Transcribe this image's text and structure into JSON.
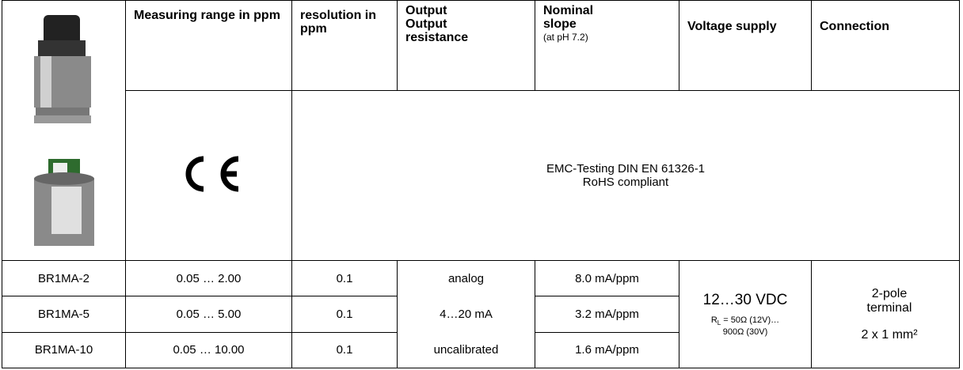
{
  "header": {
    "measuring_range": "Measuring range in ppm",
    "resolution": "resolution in ppm",
    "output": [
      "Output",
      "Output",
      "resistance"
    ],
    "slope": "Nominal slope",
    "slope_note": "(at pH 7.2)",
    "voltage": "Voltage supply",
    "connection": "Connection"
  },
  "certification": [
    "EMC-Testing DIN EN 61326-1",
    "RoHS compliant"
  ],
  "rows": [
    [
      "BR1MA-2",
      "0.05 … 2.00",
      "0.1",
      "8.0 mA/ppm"
    ],
    [
      "BR1MA-5",
      "0.05 … 5.00",
      "0.1",
      "3.2 mA/ppm"
    ],
    [
      "BR1MA-10",
      "0.05 … 10.00",
      "0.1",
      "1.6 mA/ppm"
    ]
  ],
  "output": [
    "analog",
    "4…20 mA",
    "uncalibrated"
  ],
  "voltage": {
    "main": "12…30 VDC",
    "r": "R",
    "sub": "L",
    "rest1": " = 50Ω (12V)…",
    "rest2": "900Ω (30V)"
  },
  "connection": [
    "2-pole",
    "terminal",
    "2 x 1 mm²"
  ]
}
